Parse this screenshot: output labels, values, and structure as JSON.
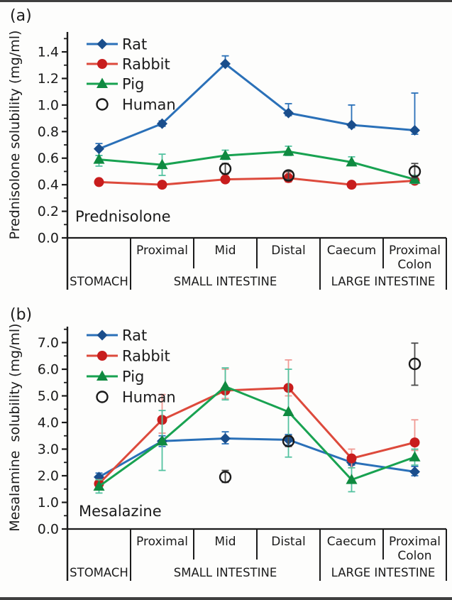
{
  "figure": {
    "background": "#fdfdfc",
    "border_bar_color": "#3f3f3f",
    "axis_color": "#1b1b1b"
  },
  "chart_data": [
    {
      "type": "line",
      "panel_label": "(a)",
      "ylabel": "Prednisolone solubility (mg/ml)",
      "inplot_label": "Prednisolone",
      "xlabel": "",
      "ylim": [
        0,
        1.55
      ],
      "ytick_max": 1.4,
      "ytick_step": 0.2,
      "minor_step": 0.1,
      "tick_decimals": 1,
      "grid": false,
      "legend_position": "top-left",
      "categories": [
        "Stomach",
        "Proximal",
        "Mid",
        "Distal",
        "Caecum",
        "Proximal Colon"
      ],
      "region_labels": [
        "",
        "Proximal",
        "Mid",
        "Distal",
        "Caecum",
        "Proximal\nColon"
      ],
      "organ_groups": [
        {
          "label": "STOMACH",
          "start": 0,
          "end": 1
        },
        {
          "label": "SMALL INTESTINE",
          "start": 1,
          "end": 4
        },
        {
          "label": "LARGE INTESTINE",
          "start": 4,
          "end": 6
        }
      ],
      "series": [
        {
          "name": "Rat",
          "marker": "diamond",
          "show_line": true,
          "line_color": "#2a70b8",
          "marker_color": "#1a4e8c",
          "err_color": "#2a70b8",
          "values": [
            0.67,
            0.86,
            1.31,
            0.94,
            0.85,
            0.81
          ],
          "err_up": [
            0.04,
            0.02,
            0.06,
            0.07,
            0.15,
            0.28
          ],
          "err_down": [
            0.05,
            0.02,
            0.02,
            0.02,
            0.02,
            0.03
          ]
        },
        {
          "name": "Rabbit",
          "marker": "circle",
          "show_line": true,
          "line_color": "#dd4a3c",
          "marker_color": "#c81d1d",
          "err_color": "#f09a94",
          "values": [
            0.42,
            0.4,
            0.44,
            0.45,
            0.4,
            0.43
          ],
          "err_up": [
            0.02,
            0.02,
            0.04,
            0.04,
            0.02,
            0.02
          ],
          "err_down": [
            0.02,
            0.02,
            0.02,
            0.03,
            0.02,
            0.02
          ]
        },
        {
          "name": "Pig",
          "marker": "triangle",
          "show_line": true,
          "line_color": "#18a251",
          "marker_color": "#0f8a40",
          "err_color": "#54c2a0",
          "values": [
            0.59,
            0.55,
            0.62,
            0.65,
            0.57,
            0.44
          ],
          "err_up": [
            0.03,
            0.08,
            0.04,
            0.04,
            0.04,
            0.03
          ],
          "err_down": [
            0.05,
            0.08,
            0.03,
            0.03,
            0.02,
            0.03
          ]
        },
        {
          "name": "Human",
          "marker": "open-circle",
          "show_line": false,
          "line_color": "#1a1a1a",
          "marker_color": "#1a1a1a",
          "err_color": "#4a4a4a",
          "values": [
            null,
            null,
            0.52,
            0.47,
            null,
            0.5
          ],
          "err_up": [
            null,
            null,
            0.04,
            0.03,
            null,
            0.06
          ],
          "err_down": [
            null,
            null,
            0.04,
            0.03,
            null,
            0.05
          ]
        }
      ]
    },
    {
      "type": "line",
      "panel_label": "(b)",
      "ylabel": "Mesalamine  solubility (mg/ml)",
      "inplot_label": "Mesalazine",
      "xlabel": "",
      "ylim": [
        0,
        7.6
      ],
      "ytick_max": 7.0,
      "ytick_step": 1.0,
      "minor_step": 0.5,
      "tick_decimals": 1,
      "grid": false,
      "legend_position": "top-left",
      "categories": [
        "Stomach",
        "Proximal",
        "Mid",
        "Distal",
        "Caecum",
        "Proximal Colon"
      ],
      "region_labels": [
        "",
        "Proximal",
        "Mid",
        "Distal",
        "Caecum",
        "Proximal\nColon"
      ],
      "organ_groups": [
        {
          "label": "STOMACH",
          "start": 0,
          "end": 1
        },
        {
          "label": "SMALL INTESTINE",
          "start": 1,
          "end": 4
        },
        {
          "label": "LARGE INTESTINE",
          "start": 4,
          "end": 6
        }
      ],
      "series": [
        {
          "name": "Rat",
          "marker": "diamond",
          "show_line": true,
          "line_color": "#2a70b8",
          "marker_color": "#1a4e8c",
          "err_color": "#2a70b8",
          "values": [
            1.95,
            3.3,
            3.4,
            3.35,
            2.5,
            2.15
          ],
          "err_up": [
            0.15,
            0.2,
            0.25,
            0.2,
            0.1,
            0.2
          ],
          "err_down": [
            0.15,
            0.2,
            0.2,
            0.2,
            0.1,
            0.15
          ]
        },
        {
          "name": "Rabbit",
          "marker": "circle",
          "show_line": true,
          "line_color": "#dd4a3c",
          "marker_color": "#c81d1d",
          "err_color": "#f09a94",
          "values": [
            1.7,
            4.1,
            5.2,
            5.3,
            2.65,
            3.25
          ],
          "err_up": [
            0.15,
            0.95,
            0.8,
            1.05,
            0.35,
            0.85
          ],
          "err_down": [
            0.2,
            0.5,
            0.3,
            0.3,
            0.35,
            0.3
          ]
        },
        {
          "name": "Pig",
          "marker": "triangle",
          "show_line": true,
          "line_color": "#18a251",
          "marker_color": "#0f8a40",
          "err_color": "#54c2a0",
          "values": [
            1.6,
            3.3,
            5.35,
            4.4,
            1.85,
            2.7
          ],
          "err_up": [
            0.25,
            1.15,
            0.7,
            1.6,
            0.45,
            0.3
          ],
          "err_down": [
            0.25,
            1.1,
            0.5,
            1.7,
            0.45,
            0.3
          ]
        },
        {
          "name": "Human",
          "marker": "open-circle",
          "show_line": false,
          "line_color": "#1a1a1a",
          "marker_color": "#1a1a1a",
          "err_color": "#4a4a4a",
          "values": [
            null,
            null,
            1.95,
            3.3,
            null,
            6.2
          ],
          "err_up": [
            null,
            null,
            0.25,
            0.2,
            null,
            0.78
          ],
          "err_down": [
            null,
            null,
            0.2,
            0.2,
            null,
            0.8
          ]
        }
      ]
    }
  ]
}
